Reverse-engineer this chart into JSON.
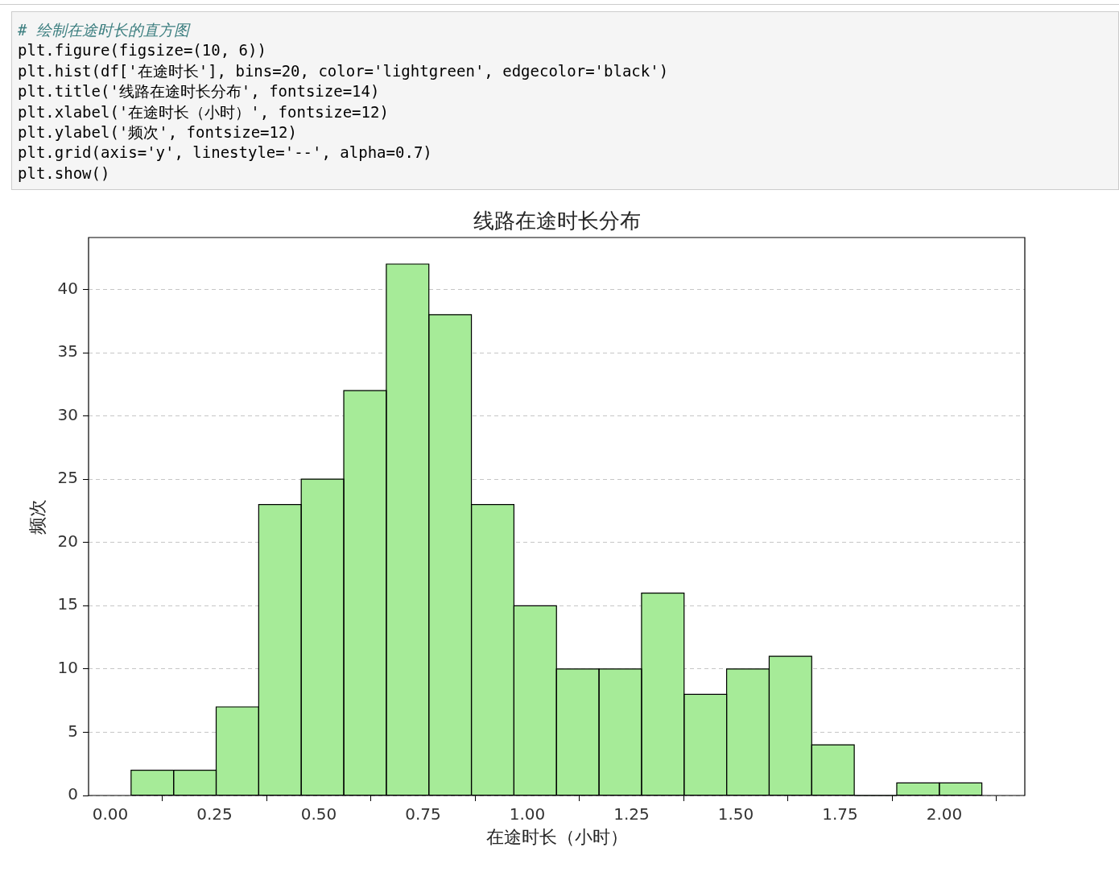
{
  "chart_data": {
    "type": "histogram",
    "title": "线路在途时长分布",
    "xlabel": "在途时长（小时）",
    "ylabel": "频次",
    "bins": [
      0.05,
      0.152,
      0.254,
      0.356,
      0.458,
      0.56,
      0.662,
      0.764,
      0.866,
      0.968,
      1.07,
      1.172,
      1.274,
      1.376,
      1.478,
      1.58,
      1.682,
      1.784,
      1.886,
      1.988,
      2.09
    ],
    "values": [
      2,
      2,
      7,
      23,
      25,
      32,
      42,
      38,
      23,
      15,
      10,
      10,
      16,
      8,
      10,
      11,
      4,
      0,
      1,
      1
    ],
    "color": "#a6eb98",
    "xlim": [
      -0.052,
      2.193
    ],
    "xticks": [
      {
        "value": 0,
        "label": "0.00"
      },
      {
        "value": 0.25,
        "label": "0.25"
      },
      {
        "value": 0.5,
        "label": "0.50"
      },
      {
        "value": 0.75,
        "label": "0.75"
      },
      {
        "value": 1,
        "label": "1.00"
      },
      {
        "value": 1.25,
        "label": "1.25"
      },
      {
        "value": 1.5,
        "label": "1.50"
      },
      {
        "value": 1.75,
        "label": "1.75"
      },
      {
        "value": 2,
        "label": "2.00"
      }
    ],
    "ylim": [
      0,
      44.1
    ],
    "yticks": [
      0,
      5,
      10,
      15,
      20,
      25,
      30,
      35,
      40
    ],
    "grid": "y",
    "line_style": "dashed",
    "legend": false,
    "annotations": [
      "# 绘制在途时长的直方图",
      "plt.figure(figsize=(10, 6))",
      "plt.hist(df['在途时长'], bins=20, color='lightgreen', edgecolor='black')",
      "plt.title('线路在途时长分布', fontsize=14)",
      "plt.xlabel('在途时长（小时）', fontsize=12)",
      "plt.ylabel('频次', fontsize=12)",
      "plt.grid(axis='y', linestyle='--', alpha=0.7)",
      "plt.show()"
    ]
  }
}
